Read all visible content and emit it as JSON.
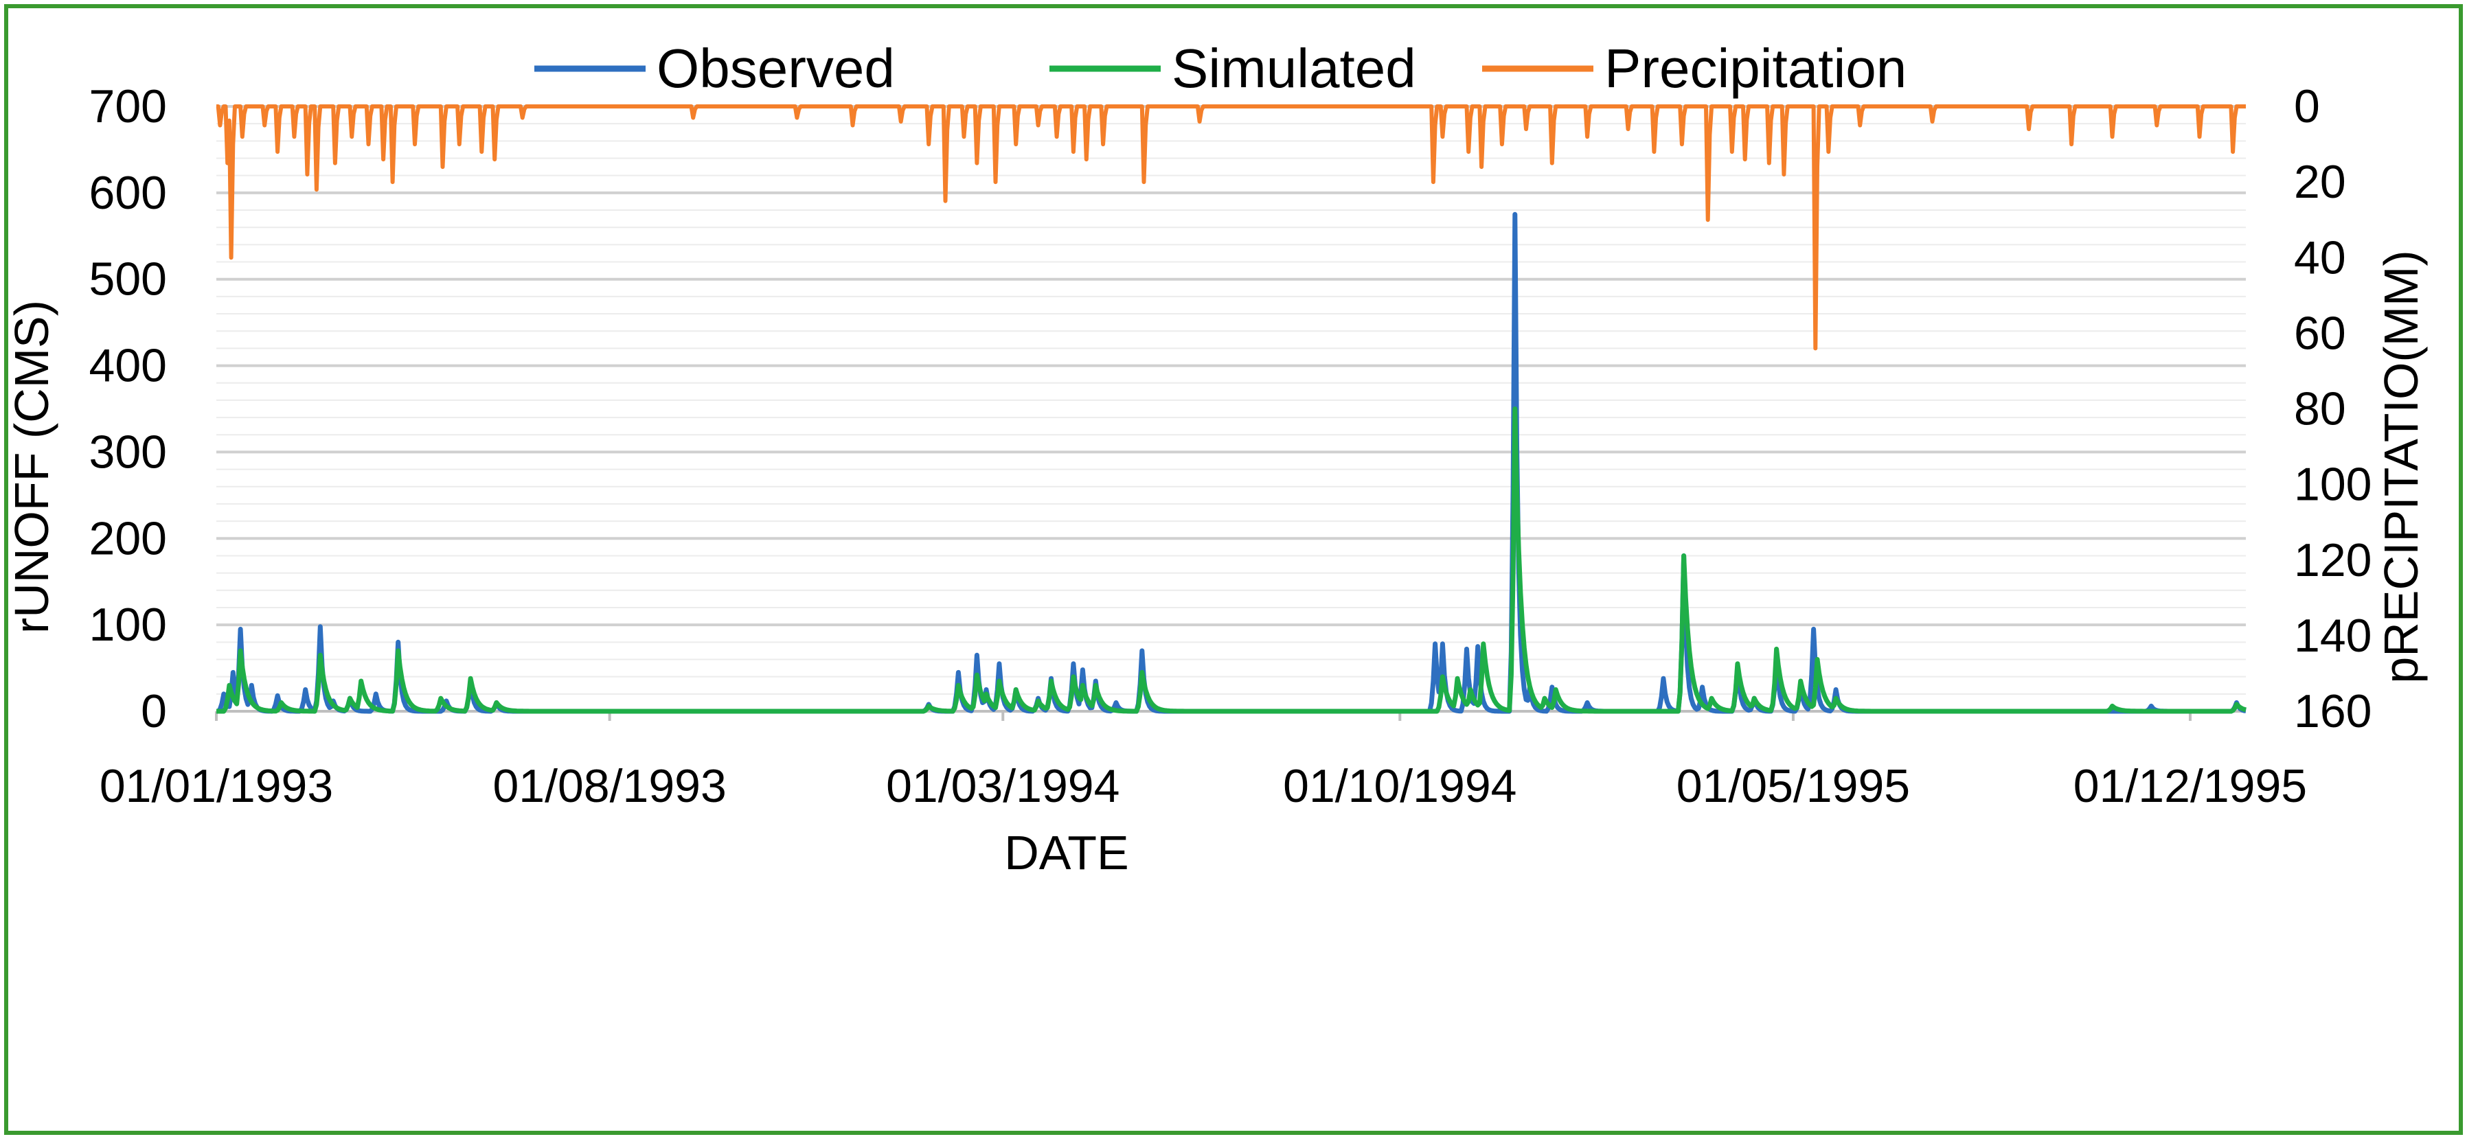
{
  "chart_data": {
    "type": "line",
    "xlabel": "DATE",
    "ylabel": "rUNOFF (CMS)",
    "y2label": "pRECIPITATIO(MM)",
    "x_ticks": [
      "01/01/1993",
      "01/08/1993",
      "01/03/1994",
      "01/10/1994",
      "01/05/1995",
      "01/12/1995"
    ],
    "x_range": [
      "01/01/1993",
      "31/12/1995"
    ],
    "y_ticks": [
      0,
      100,
      200,
      300,
      400,
      500,
      600,
      700
    ],
    "ylim": [
      0,
      700
    ],
    "y2_ticks": [
      0,
      20,
      40,
      60,
      80,
      100,
      120,
      140,
      160
    ],
    "y2lim": [
      0,
      160
    ],
    "y2_reversed": true,
    "grid": true,
    "legend_position": "top",
    "series": [
      {
        "name": "Observed",
        "axis": "left",
        "color": "#2e6fc0",
        "peaks": [
          [
            "1993-01-05",
            20
          ],
          [
            "1993-01-10",
            45
          ],
          [
            "1993-01-14",
            95
          ],
          [
            "1993-01-20",
            30
          ],
          [
            "1993-02-03",
            18
          ],
          [
            "1993-02-18",
            25
          ],
          [
            "1993-02-26",
            98
          ],
          [
            "1993-03-05",
            12
          ],
          [
            "1993-03-14",
            15
          ],
          [
            "1993-03-28",
            20
          ],
          [
            "1993-04-09",
            80
          ],
          [
            "1993-05-05",
            12
          ],
          [
            "1993-05-18",
            35
          ],
          [
            "1993-06-01",
            10
          ],
          [
            "1994-01-20",
            8
          ],
          [
            "1994-02-05",
            45
          ],
          [
            "1994-02-15",
            65
          ],
          [
            "1994-02-20",
            25
          ],
          [
            "1994-02-27",
            55
          ],
          [
            "1994-03-08",
            25
          ],
          [
            "1994-03-20",
            15
          ],
          [
            "1994-03-27",
            38
          ],
          [
            "1994-04-08",
            55
          ],
          [
            "1994-04-13",
            48
          ],
          [
            "1994-04-20",
            35
          ],
          [
            "1994-05-01",
            10
          ],
          [
            "1994-05-15",
            70
          ],
          [
            "1994-10-20",
            78
          ],
          [
            "1994-10-24",
            78
          ],
          [
            "1994-11-06",
            72
          ],
          [
            "1994-11-12",
            75
          ],
          [
            "1994-12-02",
            575
          ],
          [
            "1994-12-10",
            28
          ],
          [
            "1994-12-22",
            28
          ],
          [
            "1995-01-10",
            10
          ],
          [
            "1995-02-20",
            38
          ],
          [
            "1995-03-03",
            180
          ],
          [
            "1995-03-13",
            28
          ],
          [
            "1995-04-01",
            52
          ],
          [
            "1995-04-10",
            15
          ],
          [
            "1995-04-22",
            60
          ],
          [
            "1995-05-05",
            30
          ],
          [
            "1995-05-12",
            95
          ],
          [
            "1995-05-24",
            25
          ],
          [
            "1995-11-10",
            6
          ],
          [
            "1995-12-26",
            10
          ]
        ]
      },
      {
        "name": "Simulated",
        "axis": "left",
        "color": "#1fae48",
        "peaks": [
          [
            "1993-01-08",
            30
          ],
          [
            "1993-01-14",
            70
          ],
          [
            "1993-02-05",
            10
          ],
          [
            "1993-02-26",
            65
          ],
          [
            "1993-03-14",
            15
          ],
          [
            "1993-03-20",
            35
          ],
          [
            "1993-04-09",
            70
          ],
          [
            "1993-05-02",
            15
          ],
          [
            "1993-05-18",
            38
          ],
          [
            "1993-06-01",
            10
          ],
          [
            "1994-01-20",
            6
          ],
          [
            "1994-02-05",
            30
          ],
          [
            "1994-02-15",
            42
          ],
          [
            "1994-02-20",
            20
          ],
          [
            "1994-02-27",
            35
          ],
          [
            "1994-03-08",
            25
          ],
          [
            "1994-03-20",
            12
          ],
          [
            "1994-03-27",
            35
          ],
          [
            "1994-04-08",
            40
          ],
          [
            "1994-04-13",
            30
          ],
          [
            "1994-04-20",
            30
          ],
          [
            "1994-05-15",
            45
          ],
          [
            "1994-10-24",
            40
          ],
          [
            "1994-11-01",
            38
          ],
          [
            "1994-11-08",
            25
          ],
          [
            "1994-11-15",
            78
          ],
          [
            "1994-12-02",
            350
          ],
          [
            "1994-12-18",
            15
          ],
          [
            "1994-12-24",
            25
          ],
          [
            "1995-03-03",
            180
          ],
          [
            "1995-03-18",
            15
          ],
          [
            "1995-04-01",
            55
          ],
          [
            "1995-04-10",
            15
          ],
          [
            "1995-04-22",
            72
          ],
          [
            "1995-05-05",
            35
          ],
          [
            "1995-05-14",
            60
          ],
          [
            "1995-05-24",
            15
          ],
          [
            "1995-10-20",
            6
          ],
          [
            "1995-12-26",
            8
          ]
        ]
      },
      {
        "name": "Precipitation",
        "axis": "right",
        "color": "#f47f2a",
        "peaks": [
          [
            "1993-01-03",
            5
          ],
          [
            "1993-01-07",
            15
          ],
          [
            "1993-01-09",
            40
          ],
          [
            "1993-01-15",
            8
          ],
          [
            "1993-01-27",
            5
          ],
          [
            "1993-02-03",
            12
          ],
          [
            "1993-02-12",
            8
          ],
          [
            "1993-02-19",
            18
          ],
          [
            "1993-02-24",
            22
          ],
          [
            "1993-03-06",
            15
          ],
          [
            "1993-03-15",
            8
          ],
          [
            "1993-03-24",
            10
          ],
          [
            "1993-04-01",
            14
          ],
          [
            "1993-04-06",
            20
          ],
          [
            "1993-04-18",
            10
          ],
          [
            "1993-05-03",
            16
          ],
          [
            "1993-05-12",
            10
          ],
          [
            "1993-05-24",
            12
          ],
          [
            "1993-05-31",
            14
          ],
          [
            "1993-06-15",
            3
          ],
          [
            "1993-09-15",
            3
          ],
          [
            "1993-11-10",
            3
          ],
          [
            "1993-12-10",
            5
          ],
          [
            "1994-01-05",
            4
          ],
          [
            "1994-01-20",
            10
          ],
          [
            "1994-01-29",
            25
          ],
          [
            "1994-02-08",
            8
          ],
          [
            "1994-02-15",
            15
          ],
          [
            "1994-02-25",
            20
          ],
          [
            "1994-03-08",
            10
          ],
          [
            "1994-03-20",
            5
          ],
          [
            "1994-03-30",
            8
          ],
          [
            "1994-04-08",
            12
          ],
          [
            "1994-04-15",
            14
          ],
          [
            "1994-04-24",
            10
          ],
          [
            "1994-05-16",
            20
          ],
          [
            "1994-06-15",
            4
          ],
          [
            "1994-10-19",
            20
          ],
          [
            "1994-10-24",
            8
          ],
          [
            "1994-11-07",
            12
          ],
          [
            "1994-11-14",
            16
          ],
          [
            "1994-11-25",
            10
          ],
          [
            "1994-12-08",
            6
          ],
          [
            "1994-12-22",
            15
          ],
          [
            "1995-01-10",
            8
          ],
          [
            "1995-02-01",
            6
          ],
          [
            "1995-02-15",
            12
          ],
          [
            "1995-03-02",
            10
          ],
          [
            "1995-03-16",
            30
          ],
          [
            "1995-03-29",
            12
          ],
          [
            "1995-04-05",
            14
          ],
          [
            "1995-04-18",
            15
          ],
          [
            "1995-04-26",
            18
          ],
          [
            "1995-05-13",
            64
          ],
          [
            "1995-05-20",
            12
          ],
          [
            "1995-06-06",
            5
          ],
          [
            "1995-07-15",
            4
          ],
          [
            "1995-09-05",
            6
          ],
          [
            "1995-09-28",
            10
          ],
          [
            "1995-10-20",
            8
          ],
          [
            "1995-11-13",
            5
          ],
          [
            "1995-12-06",
            8
          ],
          [
            "1995-12-24",
            12
          ]
        ]
      }
    ]
  }
}
